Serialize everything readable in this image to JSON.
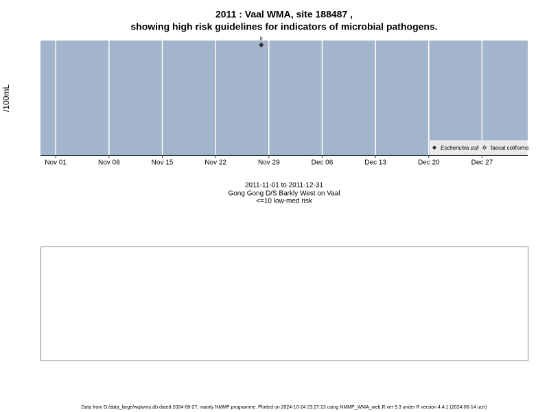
{
  "chart_data": {
    "type": "scatter",
    "title": "2011 : Vaal WMA, site 188487 ,",
    "subtitle": "showing high risk guidelines for indicators of microbial pathogens.",
    "y_label": "/100mL",
    "xlim": [
      "2011-10-30",
      "2012-01-02"
    ],
    "ylim": [
      -1,
      0.04
    ],
    "xticks": [
      {
        "value": "2011-11-01",
        "label": "Nov 01"
      },
      {
        "value": "2011-11-08",
        "label": "Nov 08"
      },
      {
        "value": "2011-11-15",
        "label": "Nov 15"
      },
      {
        "value": "2011-11-22",
        "label": "Nov 22"
      },
      {
        "value": "2011-11-29",
        "label": "Nov 29"
      },
      {
        "value": "2011-12-06",
        "label": "Dec 06"
      },
      {
        "value": "2011-12-13",
        "label": "Dec 13"
      },
      {
        "value": "2011-12-20",
        "label": "Dec 20"
      },
      {
        "value": "2011-12-27",
        "label": "Dec 27"
      }
    ],
    "grid": true,
    "background": "#a3b5cc",
    "legend": "bottom-right",
    "series": [
      {
        "name": "Escherichia coli",
        "color": "#333333",
        "marker": "filled-diamond",
        "x": [
          "2011-11-28"
        ],
        "values": [
          0
        ],
        "value_labels": [
          "0"
        ]
      },
      {
        "name": "faecal coliforms",
        "color": "#333333",
        "marker": "open-diamond",
        "x": [],
        "values": []
      }
    ],
    "caption": [
      "2011-11-01 to 2011-12-31",
      "Gong Gong D/S Barkly West on Vaal",
      "<=10 low-med risk"
    ],
    "footer": "Data from D:/data_large/wq/wms.db dated 2024-08-27, mainly NMMP programme. Plotted on 2024-10-24 23:27:13 using NMMP_WMA_web.R ver 9.3 under R version 4.4.1 (2024-06-14 ucrt)"
  }
}
